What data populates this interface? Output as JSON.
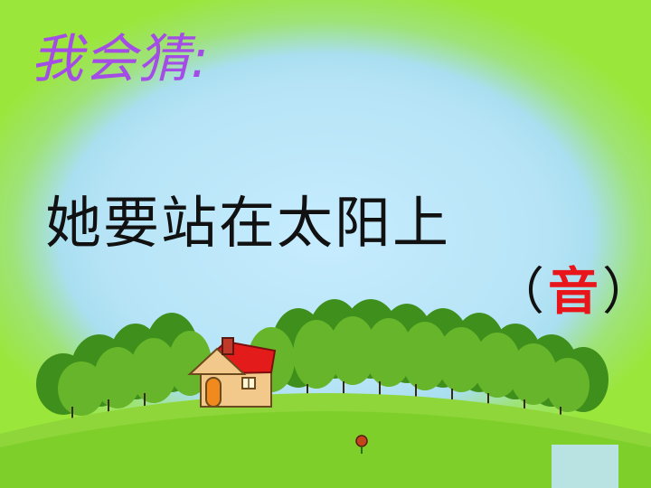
{
  "title": "我会猜:",
  "riddle": "她要站在太阳上",
  "answer": {
    "open": "（",
    "char": "音",
    "close": "）"
  },
  "colors": {
    "title": "#a34de6",
    "answer_char": "#e8161b",
    "grass": "#7fcf2a",
    "roof": "#e41b1b"
  },
  "scene_icons": [
    "house-icon",
    "trees-icon",
    "flower-icon"
  ]
}
